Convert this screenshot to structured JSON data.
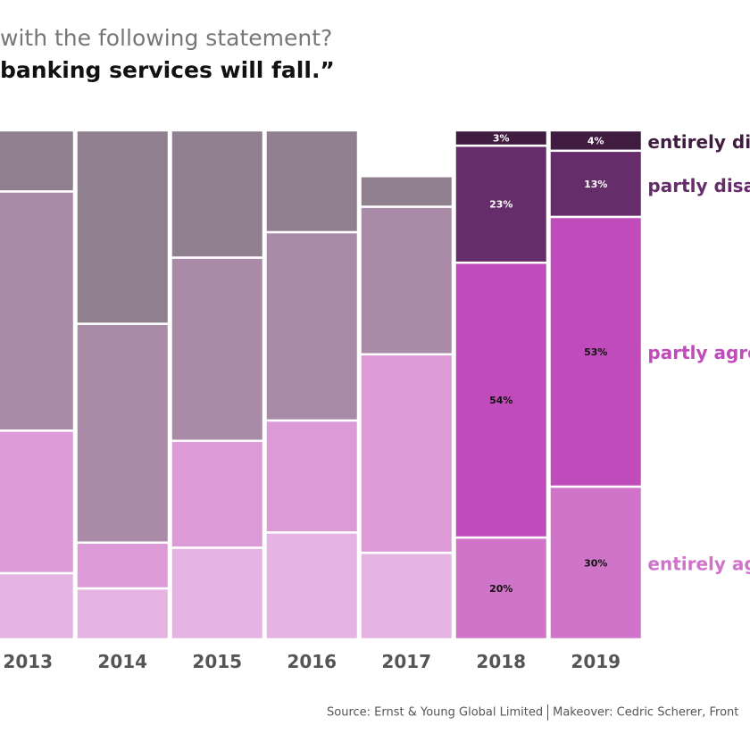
{
  "title": {
    "line1": "with the following statement?",
    "line2": "banking services will fall.”"
  },
  "source": {
    "text": "Source: Ernst & Young Global Limited",
    "makeover": "Makeover: Cedric Scherer, Front"
  },
  "chart_data": {
    "type": "bar",
    "stacked": true,
    "orientation": "vertical",
    "categories": [
      "2013",
      "2014",
      "2015",
      "2016",
      "2017",
      "2018",
      "2019"
    ],
    "highlighted_categories": [
      "2018",
      "2019"
    ],
    "series": [
      {
        "name": "I entirely agree",
        "values": [
          13,
          10,
          18,
          21,
          17,
          20,
          30
        ],
        "color": "#e6b4e3",
        "highlight_color": "#cf74c9"
      },
      {
        "name": "I partly agree",
        "values": [
          28,
          9,
          21,
          22,
          39,
          54,
          53
        ],
        "color": "#dc9ad7",
        "highlight_color": "#c04bba"
      },
      {
        "name": "I partly disagree",
        "values": [
          47,
          43,
          36,
          37,
          29,
          23,
          13
        ],
        "color": "#a98aa7",
        "highlight_color": "#652d69"
      },
      {
        "name": "I entirely disagree",
        "values": [
          12,
          38,
          25,
          20,
          6,
          3,
          4
        ],
        "color": "#8f7f8f",
        "highlight_color": "#3f1c40"
      }
    ],
    "data_labels": {
      "2018": [
        "20%",
        "54%",
        "23%",
        "3%"
      ],
      "2019": [
        "30%",
        "53%",
        "13%",
        "4%"
      ]
    },
    "legend": [
      "I entirely disagree",
      "I partly disagree",
      "I partly agree",
      "I entirely agree"
    ],
    "legend_placement": "right",
    "legend_colors": {
      "I entirely disagree": "#3f1c40",
      "I partly disagree": "#652d69",
      "I partly agree": "#c04bba",
      "I entirely agree": "#cf74c9"
    },
    "ylim": [
      0,
      100
    ],
    "xlabel": "",
    "ylabel": ""
  }
}
